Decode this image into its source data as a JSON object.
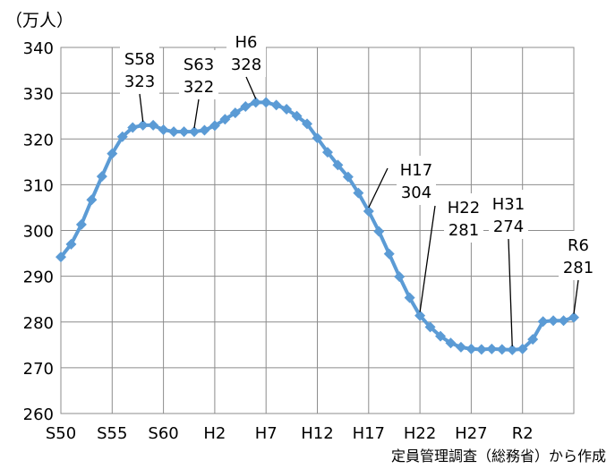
{
  "header": {
    "unit_label": "（万人）"
  },
  "footer": {
    "source": "定員管理調査（総務省）から作成"
  },
  "chart_data": {
    "type": "line",
    "xlabel": "",
    "ylabel": "（万人）",
    "ylim": [
      260,
      340
    ],
    "yticks": [
      260,
      270,
      280,
      290,
      300,
      310,
      320,
      330,
      340
    ],
    "x_tick_labels": [
      {
        "index": 0,
        "label": "S50"
      },
      {
        "index": 5,
        "label": "S55"
      },
      {
        "index": 10,
        "label": "S60"
      },
      {
        "index": 15,
        "label": "H2"
      },
      {
        "index": 20,
        "label": "H7"
      },
      {
        "index": 25,
        "label": "H12"
      },
      {
        "index": 30,
        "label": "H17"
      },
      {
        "index": 35,
        "label": "H22"
      },
      {
        "index": 40,
        "label": "H27"
      },
      {
        "index": 45,
        "label": "R2"
      }
    ],
    "grid": true,
    "color": "#5b9bd5",
    "series": [
      {
        "name": "",
        "values": [
          294.2,
          297.0,
          301.3,
          306.7,
          311.8,
          316.8,
          320.5,
          322.5,
          323.0,
          323.0,
          322.0,
          321.6,
          321.6,
          321.6,
          321.9,
          322.9,
          324.3,
          325.7,
          327.1,
          328.0,
          328.0,
          327.4,
          326.5,
          325.0,
          323.3,
          320.2,
          317.1,
          314.3,
          311.7,
          308.2,
          304.2,
          299.8,
          294.9,
          289.9,
          285.3,
          281.4,
          278.9,
          276.9,
          275.4,
          274.5,
          274.1,
          274.0,
          274.1,
          274.0,
          273.9,
          274.1,
          276.2,
          280.1,
          280.3,
          280.3,
          281.0
        ]
      }
    ],
    "annotations": [
      {
        "index": 8,
        "line1": "S58",
        "line2": "323"
      },
      {
        "index": 13,
        "line1": "S63",
        "line2": "322"
      },
      {
        "index": 19,
        "line1": "H6",
        "line2": "328"
      },
      {
        "index": 30,
        "line1": "H17",
        "line2": "304"
      },
      {
        "index": 35,
        "line1": "H22",
        "line2": "281"
      },
      {
        "index": 44,
        "line1": "H31",
        "line2": "274"
      },
      {
        "index": 50,
        "line1": "R6",
        "line2": "281"
      }
    ]
  }
}
